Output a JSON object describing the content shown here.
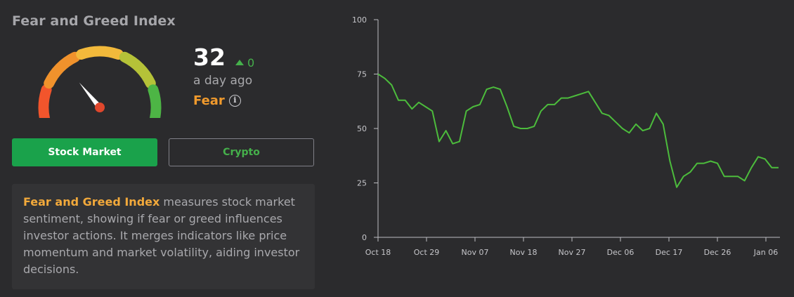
{
  "title": "Fear and Greed Index",
  "score": {
    "value": "32",
    "delta": "0",
    "delta_direction": "up",
    "time_ago": "a day ago",
    "sentiment": "Fear",
    "info_icon": "info-icon"
  },
  "gauge": {
    "segment_colors": [
      "#f2552c",
      "#f0922c",
      "#f2b93b",
      "#b5c238",
      "#4db545"
    ],
    "needle_color": "#ffffff",
    "needle_hub_color": "#e0472c"
  },
  "buttons": {
    "stock_label": "Stock Market",
    "crypto_label": "Crypto",
    "selected": "Stock Market"
  },
  "description": {
    "highlight": "Fear and Greed Index",
    "text": " measures stock market sentiment, showing if fear or greed influences investor actions. It merges indicators like price momentum and market volatility, aiding investor decisions."
  },
  "colors": {
    "background": "#2b2b2d",
    "accent_green": "#1aa24b",
    "line_green": "#4cbc3c",
    "fear_orange": "#f09a2d"
  },
  "chart_data": {
    "type": "line",
    "title": "",
    "xlabel": "",
    "ylabel": "",
    "ylim": [
      0,
      100
    ],
    "yticks": [
      0,
      25,
      50,
      75,
      100
    ],
    "xtick_labels": [
      "Oct 18",
      "Oct 29",
      "Nov 07",
      "Nov 18",
      "Nov 27",
      "Dec 06",
      "Dec 17",
      "Dec 26",
      "Jan 06"
    ],
    "grid": false,
    "series": [
      {
        "values": [
          75,
          73,
          70,
          63,
          63,
          59,
          62,
          60,
          58,
          44,
          49,
          43,
          44,
          58,
          60,
          61,
          68,
          69,
          68,
          60,
          51,
          50,
          50,
          51,
          58,
          61,
          61,
          64,
          64,
          65,
          66,
          67,
          62,
          57,
          56,
          53,
          50,
          48,
          52,
          49,
          50,
          57,
          52,
          35,
          23,
          28,
          30,
          34,
          34,
          35,
          34,
          28,
          28,
          28,
          26,
          32,
          37,
          36,
          32,
          32
        ]
      }
    ]
  }
}
